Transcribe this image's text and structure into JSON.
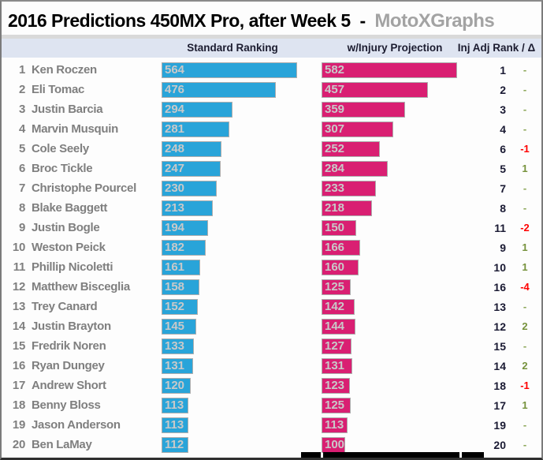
{
  "title": {
    "main": "2016 Predictions 450MX Pro, after Week 5",
    "separator": "  -  ",
    "brand": "MotoXGraphs",
    "brand_color": "#a3a3a3"
  },
  "columns": {
    "standard": "Standard Ranking",
    "injury": "w/Injury Projection",
    "rank_delta": "Inj Adj Rank / Δ"
  },
  "colors": {
    "standard_bar": "#29a4d9",
    "injury_bar": "#d91f72",
    "bar_border": "#aeaeae",
    "bar_label": "#c9c9c9",
    "name_text": "#7f7f7f",
    "rank_text": "#1a1a33",
    "delta_positive": "#76923c",
    "delta_negative": "#fe0000",
    "header_band": "#dee4f1"
  },
  "chart_data": {
    "type": "bar",
    "orientation": "horizontal",
    "title": "2016 Predictions 450MX Pro, after Week 5 - MotoXGraphs",
    "legend_position": "top",
    "grid": false,
    "xlim": [
      0,
      582
    ],
    "categories": [
      "Ken Roczen",
      "Eli Tomac",
      "Justin Barcia",
      "Marvin Musquin",
      "Cole Seely",
      "Broc Tickle",
      "Christophe Pourcel",
      "Blake Baggett",
      "Justin Bogle",
      "Weston Peick",
      "Phillip Nicoletti",
      "Matthew Bisceglia",
      "Trey Canard",
      "Justin Brayton",
      "Fredrik Noren",
      "Ryan Dungey",
      "Andrew Short",
      "Benny Bloss",
      "Jason Anderson",
      "Ben LaMay"
    ],
    "positions": [
      1,
      2,
      3,
      4,
      5,
      6,
      7,
      8,
      9,
      10,
      11,
      12,
      13,
      14,
      15,
      16,
      17,
      18,
      19,
      20
    ],
    "series": [
      {
        "name": "Standard Ranking",
        "color": "#29a4d9",
        "values": [
          564,
          476,
          294,
          281,
          248,
          247,
          230,
          213,
          194,
          182,
          161,
          158,
          152,
          145,
          133,
          131,
          120,
          113,
          113,
          112
        ]
      },
      {
        "name": "w/Injury Projection",
        "color": "#d91f72",
        "values": [
          582,
          457,
          359,
          307,
          252,
          284,
          233,
          218,
          150,
          166,
          160,
          125,
          142,
          144,
          127,
          131,
          123,
          125,
          113,
          100
        ]
      }
    ],
    "inj_adj_rank": [
      1,
      2,
      3,
      4,
      6,
      5,
      7,
      8,
      11,
      9,
      10,
      16,
      13,
      12,
      15,
      14,
      18,
      17,
      19,
      20
    ],
    "delta": [
      "-",
      "-",
      "-",
      "-",
      "-1",
      "1",
      "-",
      "-",
      "-2",
      "1",
      "1",
      "-4",
      "-",
      "2",
      "-",
      "2",
      "-1",
      "1",
      "-",
      "-"
    ]
  }
}
